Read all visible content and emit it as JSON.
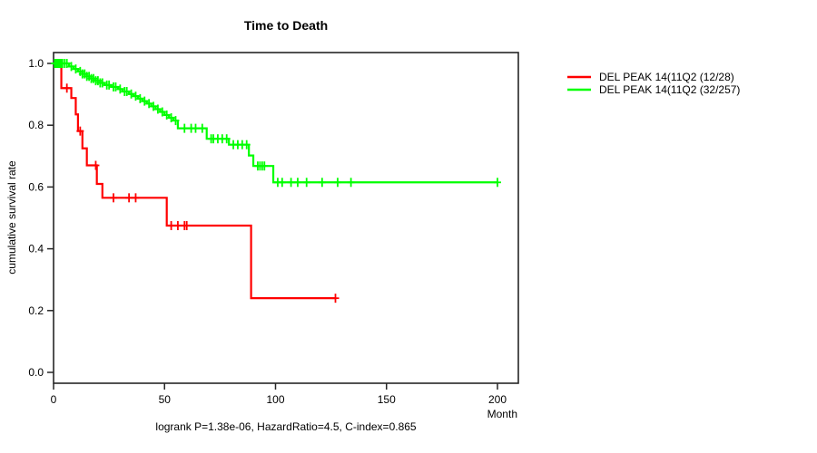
{
  "chart_data": {
    "type": "line",
    "subtype": "kaplan-meier-step",
    "title": "Time to Death",
    "xlabel": "Month",
    "ylabel": "cumulative survival rate",
    "footer": "logrank P=1.38e-06, HazardRatio=4.5, C-index=0.865",
    "xlim": [
      0,
      200
    ],
    "ylim": [
      0,
      1
    ],
    "x_ticks": [
      0,
      50,
      100,
      150,
      200
    ],
    "y_ticks": [
      0.0,
      0.2,
      0.4,
      0.6,
      0.8,
      1.0
    ],
    "grid": false,
    "legend_position": "right-outside",
    "series": [
      {
        "key": "red",
        "name": "DEL PEAK 14(11Q2 (12/28)",
        "color": "#ff0000",
        "events_over_n": "12/28",
        "steps": [
          [
            0,
            1.0
          ],
          [
            3.5,
            0.92
          ],
          [
            8,
            0.888
          ],
          [
            10,
            0.835
          ],
          [
            11,
            0.781
          ],
          [
            13,
            0.725
          ],
          [
            15,
            0.67
          ],
          [
            19.5,
            0.61
          ],
          [
            22,
            0.565
          ],
          [
            51,
            0.475
          ],
          [
            89,
            0.24
          ]
        ],
        "end_time": 127,
        "censor_times": [
          6,
          12,
          19,
          27,
          34,
          37,
          53,
          56,
          59,
          60,
          127
        ]
      },
      {
        "key": "green",
        "name": "DEL PEAK 14(11Q2 (32/257)",
        "color": "#00ff00",
        "events_over_n": "32/257",
        "steps": [
          [
            0,
            1.0
          ],
          [
            7,
            0.99
          ],
          [
            9,
            0.982
          ],
          [
            11,
            0.974
          ],
          [
            13,
            0.966
          ],
          [
            15,
            0.958
          ],
          [
            17,
            0.951
          ],
          [
            19,
            0.944
          ],
          [
            21,
            0.937
          ],
          [
            23,
            0.93
          ],
          [
            26,
            0.924
          ],
          [
            29,
            0.917
          ],
          [
            31,
            0.909
          ],
          [
            34,
            0.901
          ],
          [
            36,
            0.894
          ],
          [
            38,
            0.886
          ],
          [
            40,
            0.878
          ],
          [
            42,
            0.87
          ],
          [
            44,
            0.861
          ],
          [
            46,
            0.852
          ],
          [
            48,
            0.843
          ],
          [
            50,
            0.833
          ],
          [
            52,
            0.824
          ],
          [
            54,
            0.815
          ],
          [
            56,
            0.79
          ],
          [
            69,
            0.756
          ],
          [
            79,
            0.737
          ],
          [
            88,
            0.702
          ],
          [
            90,
            0.668
          ],
          [
            99,
            0.615
          ]
        ],
        "end_time": 200,
        "censor_times": [
          0.5,
          1,
          1.5,
          2,
          2.5,
          3,
          3.5,
          4,
          5,
          6,
          8,
          10,
          12,
          13,
          14,
          15,
          16,
          17,
          18,
          19,
          20,
          21,
          22,
          24,
          25,
          27,
          28,
          30,
          32,
          33,
          35,
          37,
          39,
          41,
          43,
          45,
          47,
          49,
          51,
          53,
          55,
          59,
          62,
          64,
          67,
          71,
          72,
          74,
          76,
          78,
          81,
          83,
          85,
          87,
          92,
          93,
          94,
          95,
          101,
          103,
          107,
          110,
          114,
          121,
          128,
          134,
          200
        ]
      }
    ]
  }
}
